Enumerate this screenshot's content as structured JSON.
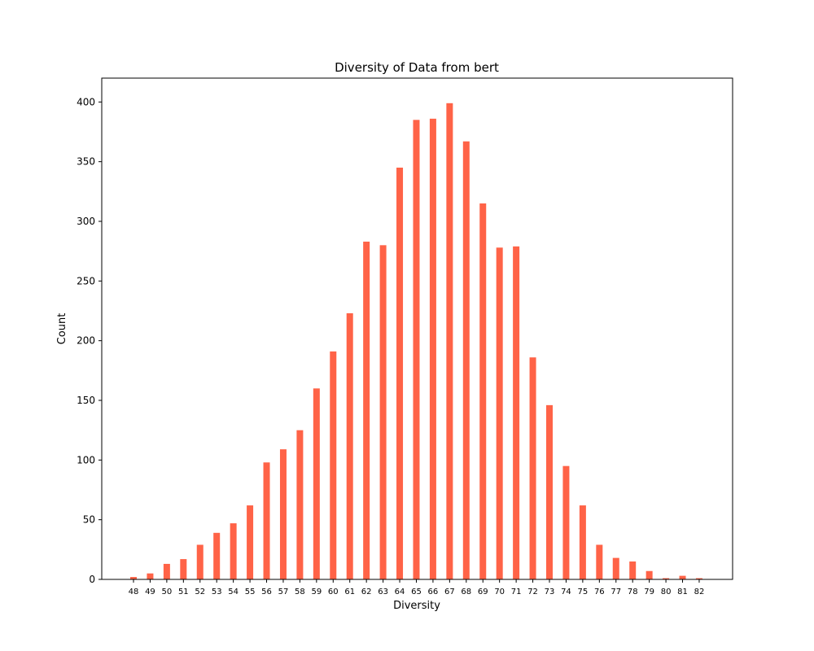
{
  "chart_data": {
    "type": "bar",
    "title": "Diversity of Data from bert",
    "xlabel": "Diversity",
    "ylabel": "Count",
    "categories": [
      "48",
      "49",
      "50",
      "51",
      "52",
      "53",
      "54",
      "55",
      "56",
      "57",
      "58",
      "59",
      "60",
      "61",
      "62",
      "63",
      "64",
      "65",
      "66",
      "67",
      "68",
      "69",
      "70",
      "71",
      "72",
      "73",
      "74",
      "75",
      "76",
      "77",
      "78",
      "79",
      "80",
      "81",
      "82"
    ],
    "values": [
      2,
      5,
      13,
      17,
      29,
      39,
      47,
      62,
      98,
      109,
      125,
      160,
      191,
      223,
      283,
      280,
      345,
      385,
      386,
      399,
      367,
      315,
      278,
      279,
      186,
      146,
      95,
      62,
      29,
      18,
      15,
      7,
      1,
      3,
      1
    ],
    "ylim": [
      0,
      420
    ],
    "yticks": [
      0,
      50,
      100,
      150,
      200,
      250,
      300,
      350,
      400
    ],
    "grid": false,
    "legend": false,
    "bar_color": "#FF6347"
  }
}
